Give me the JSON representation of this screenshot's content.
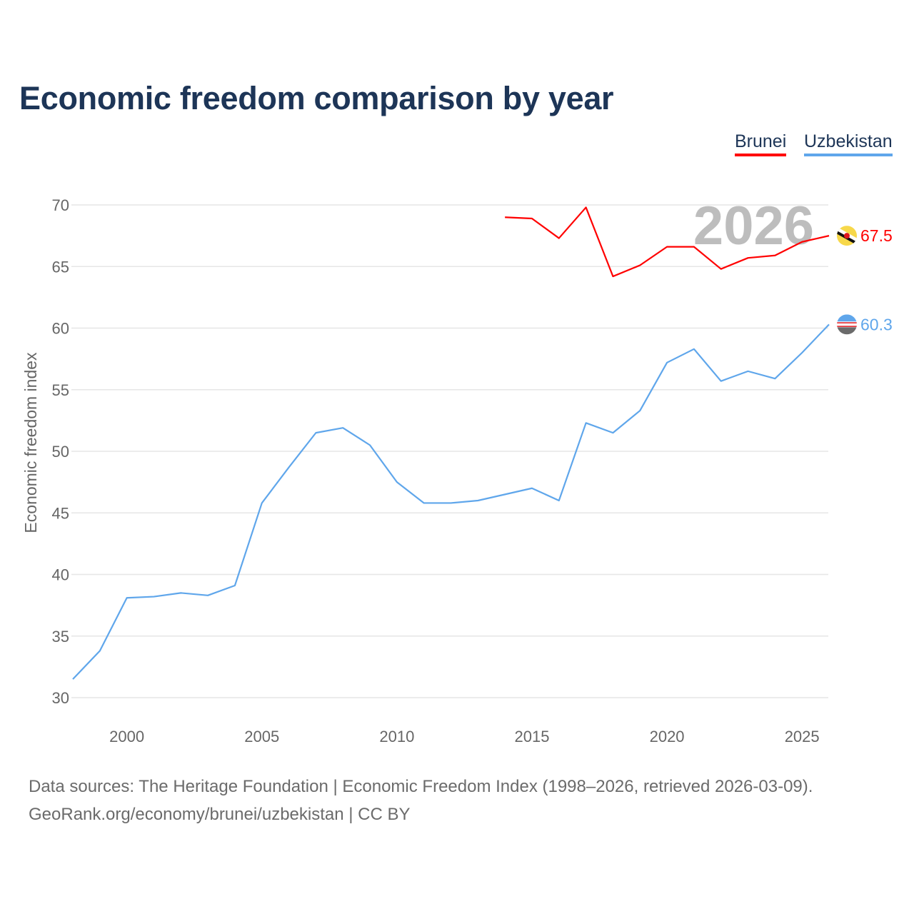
{
  "chart_data": {
    "type": "line",
    "title": "Economic freedom comparison by year",
    "ylabel": "Economic freedom index",
    "xlabel": "",
    "xlim": [
      1998,
      2026
    ],
    "ylim": [
      30,
      70
    ],
    "x_ticks": [
      "2000",
      "2005",
      "2010",
      "2015",
      "2020",
      "2025"
    ],
    "y_ticks": [
      "30",
      "35",
      "40",
      "45",
      "50",
      "55",
      "60",
      "65",
      "70"
    ],
    "grid": true,
    "legend_position": "top-right",
    "year_watermark": "2026",
    "series": [
      {
        "name": "Brunei",
        "color": "#ff0000",
        "end_label": "67.5",
        "x": [
          2014,
          2015,
          2016,
          2017,
          2018,
          2019,
          2020,
          2021,
          2022,
          2023,
          2024,
          2025,
          2026
        ],
        "values": [
          69.0,
          68.9,
          67.3,
          69.8,
          64.2,
          65.1,
          66.6,
          66.6,
          64.8,
          65.7,
          65.9,
          67.0,
          67.5
        ]
      },
      {
        "name": "Uzbekistan",
        "color": "#5fa6eb",
        "end_label": "60.3",
        "x": [
          1998,
          1999,
          2000,
          2001,
          2002,
          2003,
          2004,
          2005,
          2006,
          2007,
          2008,
          2009,
          2010,
          2011,
          2012,
          2013,
          2014,
          2015,
          2016,
          2017,
          2018,
          2019,
          2020,
          2021,
          2022,
          2023,
          2024,
          2025,
          2026
        ],
        "values": [
          31.5,
          33.8,
          38.1,
          38.2,
          38.5,
          38.3,
          39.1,
          45.8,
          48.7,
          51.5,
          51.9,
          50.5,
          47.5,
          45.8,
          45.8,
          46.0,
          46.5,
          47.0,
          46.0,
          52.3,
          51.5,
          53.3,
          57.2,
          58.3,
          55.7,
          56.5,
          55.9,
          58.0,
          60.3
        ]
      }
    ]
  },
  "footer": {
    "line1": "Data sources: The Heritage Foundation | Economic Freedom Index (1998–2026, retrieved 2026-03-09).",
    "line2": "GeoRank.org/economy/brunei/uzbekistan | CC BY"
  }
}
